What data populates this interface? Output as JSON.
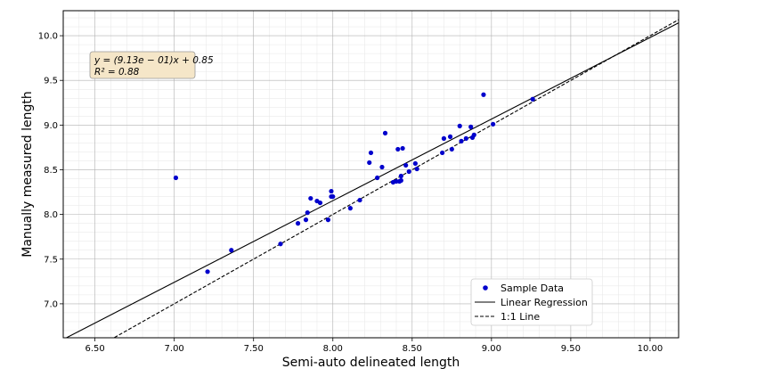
{
  "chart_data": {
    "type": "scatter",
    "xlabel": "Semi-auto delineated length",
    "ylabel": "Manually measured length",
    "xlim": [
      6.3,
      10.18
    ],
    "ylim": [
      6.62,
      10.28
    ],
    "x_ticks": [
      "6.50",
      "7.00",
      "7.50",
      "8.00",
      "8.50",
      "9.00",
      "9.50",
      "10.00"
    ],
    "y_ticks": [
      "7.0",
      "7.5",
      "8.0",
      "8.5",
      "9.0",
      "9.5",
      "10.0"
    ],
    "grid": true,
    "legend_position": "lower-right",
    "annotation": {
      "equation": "y = (9.13e − 01)x + 0.85",
      "r2": "R² = 0.88",
      "background": "#f5e6c8"
    },
    "series": [
      {
        "name": "Sample Data",
        "kind": "scatter",
        "color": "#0000cc",
        "points": [
          [
            7.01,
            8.41
          ],
          [
            7.21,
            7.36
          ],
          [
            7.36,
            7.6
          ],
          [
            7.67,
            7.67
          ],
          [
            7.78,
            7.9
          ],
          [
            7.83,
            7.94
          ],
          [
            7.84,
            8.02
          ],
          [
            7.86,
            8.18
          ],
          [
            7.9,
            8.15
          ],
          [
            7.92,
            8.13
          ],
          [
            7.97,
            7.94
          ],
          [
            7.99,
            8.2
          ],
          [
            7.99,
            8.26
          ],
          [
            8.0,
            8.2
          ],
          [
            8.11,
            8.07
          ],
          [
            8.17,
            8.16
          ],
          [
            8.23,
            8.58
          ],
          [
            8.24,
            8.69
          ],
          [
            8.28,
            8.41
          ],
          [
            8.31,
            8.53
          ],
          [
            8.33,
            8.91
          ],
          [
            8.38,
            8.36
          ],
          [
            8.4,
            8.37
          ],
          [
            8.41,
            8.73
          ],
          [
            8.42,
            8.37
          ],
          [
            8.43,
            8.38
          ],
          [
            8.43,
            8.43
          ],
          [
            8.44,
            8.74
          ],
          [
            8.46,
            8.55
          ],
          [
            8.48,
            8.48
          ],
          [
            8.52,
            8.57
          ],
          [
            8.53,
            8.51
          ],
          [
            8.69,
            8.69
          ],
          [
            8.7,
            8.85
          ],
          [
            8.74,
            8.87
          ],
          [
            8.75,
            8.73
          ],
          [
            8.8,
            8.99
          ],
          [
            8.81,
            8.82
          ],
          [
            8.84,
            8.85
          ],
          [
            8.87,
            8.98
          ],
          [
            8.88,
            8.86
          ],
          [
            8.89,
            8.89
          ],
          [
            8.95,
            9.34
          ],
          [
            9.01,
            9.01
          ],
          [
            9.26,
            9.29
          ]
        ]
      },
      {
        "name": "Linear Regression",
        "kind": "line",
        "style": "solid",
        "color": "#000000",
        "slope": 0.913,
        "intercept": 0.85
      },
      {
        "name": "1:1 Line",
        "kind": "line",
        "style": "dashed",
        "color": "#000000",
        "slope": 1.0,
        "intercept": 0.0
      }
    ]
  }
}
